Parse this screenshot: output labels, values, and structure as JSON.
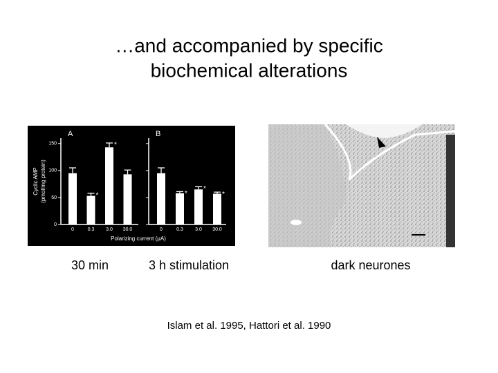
{
  "title": [
    "…and accompanied by specific",
    "biochemical alterations"
  ],
  "captions": [
    "30 min",
    "3 h stimulation",
    "dark neurones"
  ],
  "citation": "Islam et al. 1995, Hattori et al. 1990",
  "chart_data": [
    {
      "type": "bar",
      "title": "A",
      "ylabel": [
        "Cyclic  AMP",
        "(pmol/mg  protein)"
      ],
      "xlabel": "Polarizing  current  (μA)",
      "categories": [
        "0",
        "0.3",
        "3.0",
        "30.0"
      ],
      "values": [
        95,
        53,
        143,
        93
      ],
      "errors": [
        10,
        5,
        8,
        8
      ],
      "stars": [
        null,
        "*",
        "*",
        null
      ],
      "color": "#ffffff",
      "ylim": [
        0,
        160
      ],
      "yticks": [
        0,
        50,
        100,
        150
      ]
    },
    {
      "type": "bar",
      "title": "B",
      "categories": [
        "0",
        "0.3",
        "3.0",
        "30.0"
      ],
      "values": [
        95,
        58,
        65,
        57
      ],
      "errors": [
        10,
        3,
        5,
        3
      ],
      "stars": [
        null,
        "*",
        "*",
        "*"
      ],
      "color": "#ffffff",
      "ylim": [
        0,
        160
      ]
    }
  ]
}
